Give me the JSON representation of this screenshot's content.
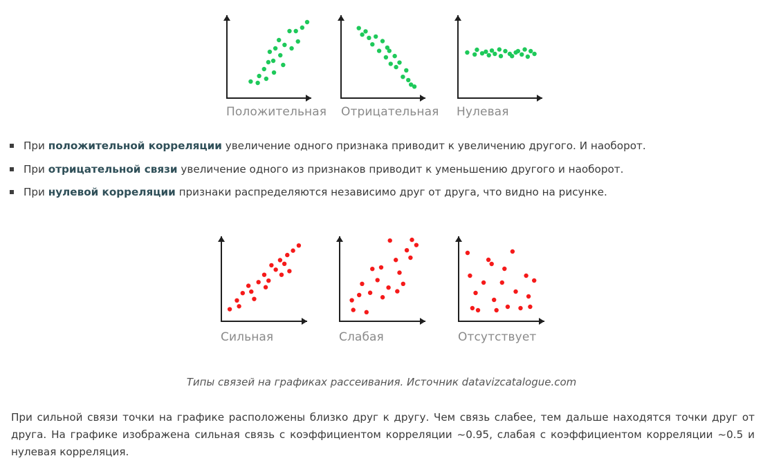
{
  "top_figures": {
    "dot_color": "#1ec95a",
    "charts": [
      {
        "name": "positive",
        "label": "Положительная",
        "points": [
          [
            0.2,
            0.12
          ],
          [
            0.3,
            0.1
          ],
          [
            0.32,
            0.2
          ],
          [
            0.39,
            0.3
          ],
          [
            0.42,
            0.16
          ],
          [
            0.45,
            0.4
          ],
          [
            0.52,
            0.42
          ],
          [
            0.53,
            0.25
          ],
          [
            0.55,
            0.6
          ],
          [
            0.62,
            0.5
          ],
          [
            0.66,
            0.36
          ],
          [
            0.68,
            0.65
          ],
          [
            0.75,
            0.85
          ],
          [
            0.78,
            0.6
          ],
          [
            0.84,
            0.85
          ],
          [
            0.87,
            0.7
          ],
          [
            0.93,
            0.9
          ],
          [
            1.0,
            0.98
          ],
          [
            0.6,
            0.72
          ],
          [
            0.47,
            0.55
          ]
        ]
      },
      {
        "name": "negative",
        "label": "Отрицательная",
        "points": [
          [
            0.15,
            0.95
          ],
          [
            0.2,
            0.85
          ],
          [
            0.25,
            0.9
          ],
          [
            0.3,
            0.8
          ],
          [
            0.35,
            0.7
          ],
          [
            0.4,
            0.82
          ],
          [
            0.45,
            0.6
          ],
          [
            0.5,
            0.75
          ],
          [
            0.55,
            0.5
          ],
          [
            0.6,
            0.6
          ],
          [
            0.62,
            0.4
          ],
          [
            0.68,
            0.52
          ],
          [
            0.7,
            0.35
          ],
          [
            0.75,
            0.42
          ],
          [
            0.8,
            0.2
          ],
          [
            0.85,
            0.3
          ],
          [
            0.88,
            0.15
          ],
          [
            0.92,
            0.08
          ],
          [
            0.97,
            0.05
          ],
          [
            0.57,
            0.65
          ]
        ]
      },
      {
        "name": "zero",
        "label": "Нулевая",
        "points": [
          [
            0.05,
            0.55
          ],
          [
            0.15,
            0.48
          ],
          [
            0.18,
            0.65
          ],
          [
            0.25,
            0.52
          ],
          [
            0.3,
            0.58
          ],
          [
            0.38,
            0.62
          ],
          [
            0.42,
            0.5
          ],
          [
            0.48,
            0.66
          ],
          [
            0.5,
            0.42
          ],
          [
            0.56,
            0.6
          ],
          [
            0.62,
            0.5
          ],
          [
            0.65,
            0.42
          ],
          [
            0.7,
            0.55
          ],
          [
            0.78,
            0.48
          ],
          [
            0.82,
            0.66
          ],
          [
            0.86,
            0.4
          ],
          [
            0.9,
            0.6
          ],
          [
            0.95,
            0.5
          ],
          [
            0.73,
            0.6
          ],
          [
            0.34,
            0.45
          ]
        ]
      }
    ]
  },
  "bullets": [
    {
      "pre": "При ",
      "bold": "положительной корреляции",
      "post": " увеличение одного признака приводит к увеличению другого. И наоборот."
    },
    {
      "pre": "При ",
      "bold": "отрицательной связи",
      "post": " увеличение одного из признаков приводит к уменьшению другого и наоборот."
    },
    {
      "pre": "При ",
      "bold": "нулевой корреляции",
      "post": " признаки распределяются независимо друг от друга, что видно на рисунке."
    }
  ],
  "bottom_figures": {
    "dot_color": "#f51a1a",
    "charts": [
      {
        "name": "strong",
        "label": "Сильная",
        "points": [
          [
            0.02,
            0.08
          ],
          [
            0.12,
            0.2
          ],
          [
            0.15,
            0.12
          ],
          [
            0.2,
            0.3
          ],
          [
            0.28,
            0.4
          ],
          [
            0.32,
            0.32
          ],
          [
            0.36,
            0.22
          ],
          [
            0.42,
            0.45
          ],
          [
            0.5,
            0.55
          ],
          [
            0.52,
            0.38
          ],
          [
            0.56,
            0.47
          ],
          [
            0.6,
            0.68
          ],
          [
            0.66,
            0.62
          ],
          [
            0.72,
            0.75
          ],
          [
            0.74,
            0.55
          ],
          [
            0.78,
            0.7
          ],
          [
            0.82,
            0.82
          ],
          [
            0.85,
            0.6
          ],
          [
            0.9,
            0.88
          ],
          [
            0.98,
            0.95
          ]
        ]
      },
      {
        "name": "weak",
        "label": "Слабая",
        "points": [
          [
            0.1,
            0.18
          ],
          [
            0.12,
            0.05
          ],
          [
            0.2,
            0.25
          ],
          [
            0.24,
            0.4
          ],
          [
            0.3,
            0.02
          ],
          [
            0.35,
            0.28
          ],
          [
            0.38,
            0.6
          ],
          [
            0.45,
            0.45
          ],
          [
            0.5,
            0.62
          ],
          [
            0.52,
            0.22
          ],
          [
            0.6,
            0.35
          ],
          [
            0.62,
            0.98
          ],
          [
            0.7,
            0.72
          ],
          [
            0.72,
            0.3
          ],
          [
            0.75,
            0.55
          ],
          [
            0.8,
            0.4
          ],
          [
            0.85,
            0.85
          ],
          [
            0.9,
            0.75
          ],
          [
            0.92,
            0.99
          ],
          [
            0.98,
            0.92
          ]
        ]
      },
      {
        "name": "absent",
        "label": "Отсутствует",
        "points": [
          [
            0.12,
            0.88
          ],
          [
            0.15,
            0.55
          ],
          [
            0.18,
            0.08
          ],
          [
            0.22,
            0.3
          ],
          [
            0.25,
            0.05
          ],
          [
            0.32,
            0.45
          ],
          [
            0.38,
            0.78
          ],
          [
            0.42,
            0.72
          ],
          [
            0.45,
            0.2
          ],
          [
            0.48,
            0.05
          ],
          [
            0.55,
            0.45
          ],
          [
            0.58,
            0.65
          ],
          [
            0.62,
            0.1
          ],
          [
            0.68,
            0.9
          ],
          [
            0.72,
            0.32
          ],
          [
            0.78,
            0.08
          ],
          [
            0.85,
            0.55
          ],
          [
            0.88,
            0.25
          ],
          [
            0.9,
            0.1
          ],
          [
            0.95,
            0.48
          ]
        ]
      }
    ]
  },
  "figure_caption": "Типы связей на графиках рассеивания. Источник datavizcatalogue.com",
  "paragraph": "При сильной связи точки на графике расположены близко друг к другу. Чем связь слабее, тем дальше находятся точки друг от друга. На графике изображена сильная связь с коэффициентом корреляции ~0.95, слабая с коэффициентом корреляции ~0.5 и нулевая корреляция."
}
